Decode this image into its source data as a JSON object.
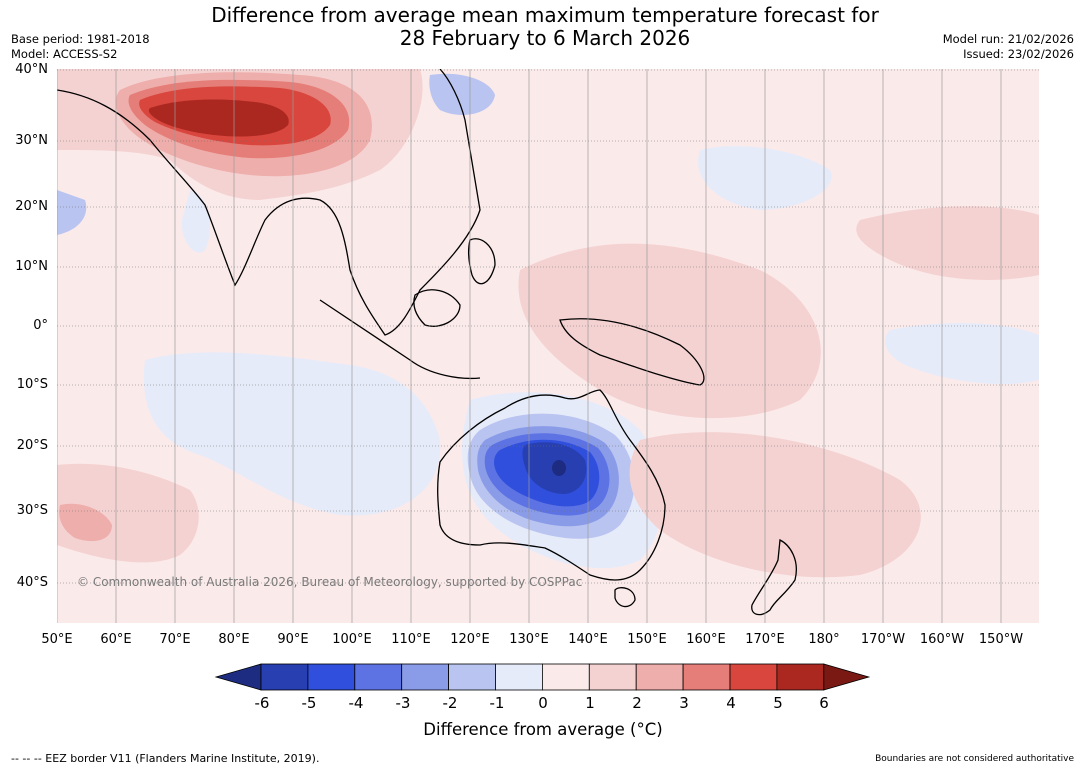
{
  "title": {
    "line1": "Difference from average mean maximum temperature forecast for",
    "line2": "28 February to 6 March 2026"
  },
  "meta": {
    "base_period": "Base period: 1981-2018",
    "model": "Model: ACCESS-S2",
    "model_run": "Model run: 21/02/2026",
    "issued": "Issued: 23/02/2026"
  },
  "map": {
    "lat_labels": [
      "40°N",
      "30°N",
      "20°N",
      "10°N",
      "0°",
      "10°S",
      "20°S",
      "30°S",
      "40°S"
    ],
    "lon_labels": [
      "50°E",
      "60°E",
      "70°E",
      "80°E",
      "90°E",
      "100°E",
      "110°E",
      "120°E",
      "130°E",
      "140°E",
      "150°E",
      "160°E",
      "170°E",
      "180°",
      "170°W",
      "160°W",
      "150°W"
    ],
    "copyright": "© Commonwealth of Australia 2026, Bureau of Meteorology, supported by COSPPac"
  },
  "colorbar": {
    "ticks": [
      "-6",
      "-5",
      "-4",
      "-3",
      "-2",
      "-1",
      "0",
      "1",
      "2",
      "3",
      "4",
      "5",
      "6"
    ],
    "colors": [
      "#1d2c80",
      "#273fb0",
      "#2f4fdc",
      "#5d73e3",
      "#8a9be8",
      "#b9c4f0",
      "#e6ebfa",
      "#fbeaea",
      "#f5d2d2",
      "#eeaeab",
      "#e57d78",
      "#d8463d",
      "#ab2821",
      "#7a1813"
    ],
    "label": "Difference from average (°C)"
  },
  "footer": {
    "eez_note": "--  --  -- EEZ border V11 (Flanders Marine Institute, 2019).",
    "boundary_note": "Boundaries are not considered authoritative"
  }
}
